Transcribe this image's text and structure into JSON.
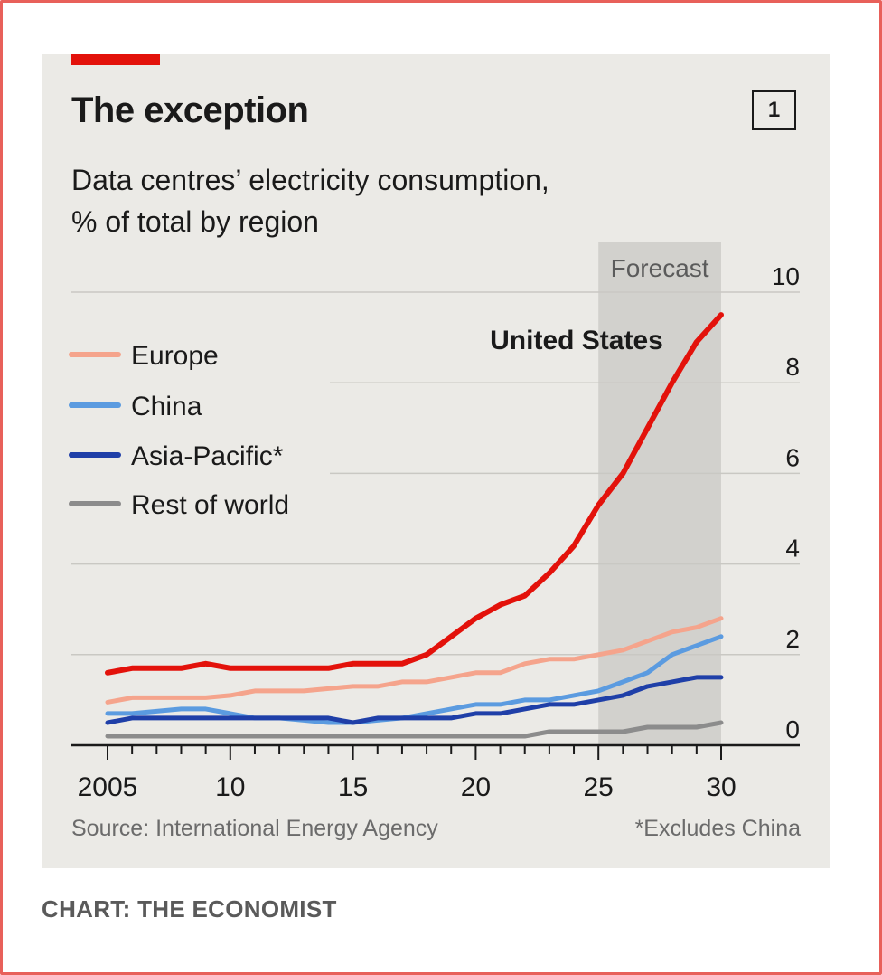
{
  "chart": {
    "title": "The exception",
    "number": "1",
    "subtitle_line1": "Data centres’ electricity consumption,",
    "subtitle_line2": "% of total by region",
    "source": "Source: International Energy Agency",
    "footnote": "*Excludes China",
    "credit": "CHART: THE ECONOMIST",
    "forecast_label": "Forecast",
    "us_annotation": "United States"
  },
  "colors": {
    "background": "#ebeae6",
    "brand_red": "#e3120b",
    "united_states": "#e3120b",
    "europe": "#f5a48c",
    "china": "#5b9be0",
    "asia_pacific": "#1f3fa8",
    "rest_of_world": "#8c8c8c",
    "forecast_band": "#d2d1cd"
  },
  "chart_data": {
    "type": "line",
    "title": "The exception",
    "subtitle": "Data centres’ electricity consumption, % of total by region",
    "x": [
      2005,
      2006,
      2007,
      2008,
      2009,
      2010,
      2011,
      2012,
      2013,
      2014,
      2015,
      2016,
      2017,
      2018,
      2019,
      2020,
      2021,
      2022,
      2023,
      2024,
      2025,
      2026,
      2027,
      2028,
      2029,
      2030
    ],
    "x_tick_values": [
      2005,
      2010,
      2015,
      2020,
      2025,
      2030
    ],
    "x_tick_labels": [
      "2005",
      "10",
      "15",
      "20",
      "25",
      "30"
    ],
    "ylim": [
      0,
      10
    ],
    "y_ticks": [
      0,
      2,
      4,
      6,
      8,
      10
    ],
    "y_tick_labels": [
      "0",
      "2",
      "4",
      "6",
      "8",
      "10"
    ],
    "forecast_range": [
      2025,
      2030
    ],
    "grid": true,
    "legend_position": "left",
    "series": [
      {
        "name": "United States",
        "color_key": "united_states",
        "values": [
          1.6,
          1.7,
          1.7,
          1.7,
          1.8,
          1.7,
          1.7,
          1.7,
          1.7,
          1.7,
          1.8,
          1.8,
          1.8,
          2.0,
          2.4,
          2.8,
          3.1,
          3.3,
          3.8,
          4.4,
          5.3,
          6.0,
          7.0,
          8.0,
          8.9,
          9.5
        ]
      },
      {
        "name": "Europe",
        "color_key": "europe",
        "values": [
          0.95,
          1.05,
          1.05,
          1.05,
          1.05,
          1.1,
          1.2,
          1.2,
          1.2,
          1.25,
          1.3,
          1.3,
          1.4,
          1.4,
          1.5,
          1.6,
          1.6,
          1.8,
          1.9,
          1.9,
          2.0,
          2.1,
          2.3,
          2.5,
          2.6,
          2.8
        ]
      },
      {
        "name": "China",
        "color_key": "china",
        "values": [
          0.7,
          0.7,
          0.75,
          0.8,
          0.8,
          0.7,
          0.6,
          0.6,
          0.55,
          0.5,
          0.5,
          0.55,
          0.6,
          0.7,
          0.8,
          0.9,
          0.9,
          1.0,
          1.0,
          1.1,
          1.2,
          1.4,
          1.6,
          2.0,
          2.2,
          2.4
        ]
      },
      {
        "name": "Asia-Pacific*",
        "color_key": "asia_pacific",
        "values": [
          0.5,
          0.6,
          0.6,
          0.6,
          0.6,
          0.6,
          0.6,
          0.6,
          0.6,
          0.6,
          0.5,
          0.6,
          0.6,
          0.6,
          0.6,
          0.7,
          0.7,
          0.8,
          0.9,
          0.9,
          1.0,
          1.1,
          1.3,
          1.4,
          1.5,
          1.5
        ]
      },
      {
        "name": "Rest of world",
        "color_key": "rest_of_world",
        "values": [
          0.2,
          0.2,
          0.2,
          0.2,
          0.2,
          0.2,
          0.2,
          0.2,
          0.2,
          0.2,
          0.2,
          0.2,
          0.2,
          0.2,
          0.2,
          0.2,
          0.2,
          0.2,
          0.3,
          0.3,
          0.3,
          0.3,
          0.4,
          0.4,
          0.4,
          0.5
        ]
      }
    ],
    "legend_order": [
      "Europe",
      "China",
      "Asia-Pacific*",
      "Rest of world"
    ]
  }
}
